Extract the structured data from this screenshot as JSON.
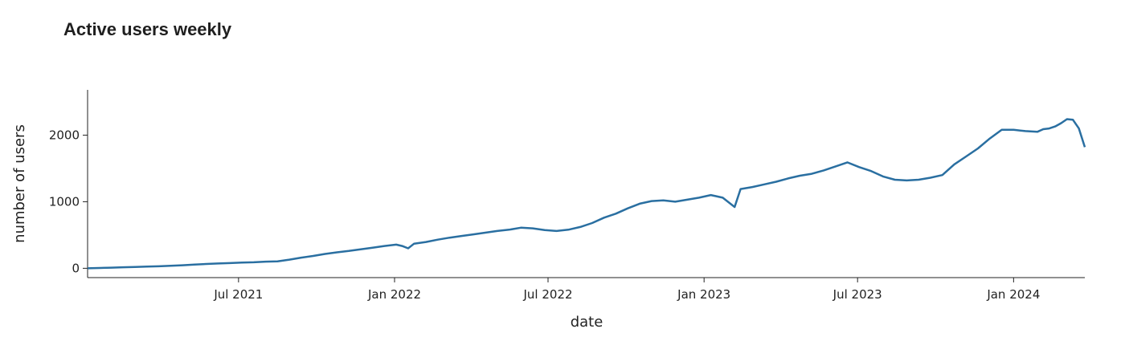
{
  "chart_data": {
    "type": "line",
    "title": "Active users weekly",
    "xlabel": "date",
    "ylabel": "number of users",
    "x_range": [
      "2021-01-04",
      "2024-03-25"
    ],
    "ylim": [
      -140,
      2680
    ],
    "grid": false,
    "line_color": "#2a6fa1",
    "x_ticks": [
      {
        "date": "2021-07-01",
        "label": "Jul 2021"
      },
      {
        "date": "2022-01-01",
        "label": "Jan 2022"
      },
      {
        "date": "2022-07-01",
        "label": "Jul 2022"
      },
      {
        "date": "2023-01-01",
        "label": "Jan 2023"
      },
      {
        "date": "2023-07-01",
        "label": "Jul 2023"
      },
      {
        "date": "2024-01-01",
        "label": "Jan 2024"
      }
    ],
    "y_ticks": [
      {
        "value": 0,
        "label": "0"
      },
      {
        "value": 1000,
        "label": "1000"
      },
      {
        "value": 2000,
        "label": "2000"
      }
    ],
    "series": [
      {
        "points": [
          [
            "2021-01-04",
            0
          ],
          [
            "2021-01-18",
            5
          ],
          [
            "2021-02-01",
            10
          ],
          [
            "2021-02-15",
            15
          ],
          [
            "2021-03-01",
            20
          ],
          [
            "2021-03-15",
            25
          ],
          [
            "2021-03-29",
            30
          ],
          [
            "2021-04-12",
            38
          ],
          [
            "2021-04-26",
            45
          ],
          [
            "2021-05-10",
            55
          ],
          [
            "2021-05-24",
            65
          ],
          [
            "2021-06-07",
            72
          ],
          [
            "2021-06-21",
            78
          ],
          [
            "2021-07-05",
            85
          ],
          [
            "2021-07-19",
            90
          ],
          [
            "2021-08-02",
            100
          ],
          [
            "2021-08-16",
            105
          ],
          [
            "2021-08-30",
            130
          ],
          [
            "2021-09-13",
            160
          ],
          [
            "2021-09-27",
            185
          ],
          [
            "2021-10-11",
            215
          ],
          [
            "2021-10-25",
            240
          ],
          [
            "2021-11-08",
            260
          ],
          [
            "2021-11-22",
            285
          ],
          [
            "2021-12-06",
            310
          ],
          [
            "2021-12-20",
            335
          ],
          [
            "2022-01-03",
            355
          ],
          [
            "2022-01-10",
            335
          ],
          [
            "2022-01-17",
            300
          ],
          [
            "2022-01-24",
            370
          ],
          [
            "2022-02-07",
            395
          ],
          [
            "2022-02-21",
            430
          ],
          [
            "2022-03-07",
            460
          ],
          [
            "2022-03-21",
            485
          ],
          [
            "2022-04-04",
            510
          ],
          [
            "2022-04-18",
            535
          ],
          [
            "2022-05-02",
            560
          ],
          [
            "2022-05-16",
            580
          ],
          [
            "2022-05-30",
            610
          ],
          [
            "2022-06-13",
            600
          ],
          [
            "2022-06-27",
            575
          ],
          [
            "2022-07-11",
            560
          ],
          [
            "2022-07-25",
            580
          ],
          [
            "2022-08-08",
            620
          ],
          [
            "2022-08-22",
            680
          ],
          [
            "2022-09-05",
            760
          ],
          [
            "2022-09-19",
            820
          ],
          [
            "2022-10-03",
            900
          ],
          [
            "2022-10-17",
            970
          ],
          [
            "2022-10-31",
            1010
          ],
          [
            "2022-11-14",
            1020
          ],
          [
            "2022-11-28",
            1000
          ],
          [
            "2022-12-12",
            1030
          ],
          [
            "2022-12-26",
            1060
          ],
          [
            "2023-01-09",
            1100
          ],
          [
            "2023-01-23",
            1060
          ],
          [
            "2023-02-06",
            920
          ],
          [
            "2023-02-13",
            1190
          ],
          [
            "2023-02-27",
            1220
          ],
          [
            "2023-03-13",
            1260
          ],
          [
            "2023-03-27",
            1300
          ],
          [
            "2023-04-10",
            1350
          ],
          [
            "2023-04-24",
            1390
          ],
          [
            "2023-05-08",
            1420
          ],
          [
            "2023-05-22",
            1470
          ],
          [
            "2023-06-05",
            1530
          ],
          [
            "2023-06-19",
            1590
          ],
          [
            "2023-07-03",
            1520
          ],
          [
            "2023-07-17",
            1460
          ],
          [
            "2023-07-31",
            1380
          ],
          [
            "2023-08-14",
            1330
          ],
          [
            "2023-08-28",
            1320
          ],
          [
            "2023-09-11",
            1330
          ],
          [
            "2023-09-25",
            1360
          ],
          [
            "2023-10-09",
            1400
          ],
          [
            "2023-10-23",
            1560
          ],
          [
            "2023-11-06",
            1680
          ],
          [
            "2023-11-20",
            1800
          ],
          [
            "2023-12-04",
            1950
          ],
          [
            "2023-12-18",
            2080
          ],
          [
            "2024-01-01",
            2080
          ],
          [
            "2024-01-15",
            2060
          ],
          [
            "2024-01-29",
            2050
          ],
          [
            "2024-02-05",
            2090
          ],
          [
            "2024-02-12",
            2100
          ],
          [
            "2024-02-19",
            2130
          ],
          [
            "2024-02-26",
            2180
          ],
          [
            "2024-03-04",
            2240
          ],
          [
            "2024-03-11",
            2230
          ],
          [
            "2024-03-18",
            2100
          ],
          [
            "2024-03-25",
            1820
          ]
        ]
      }
    ]
  }
}
